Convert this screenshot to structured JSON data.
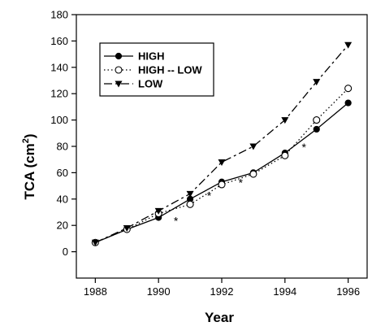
{
  "chart_data": {
    "type": "line",
    "title": "",
    "xlabel": "Year",
    "ylabel": "TCA (cm",
    "ylabel_sup": "2",
    "ylabel_close": ")",
    "xlim": [
      1987.4,
      1996.6
    ],
    "ylim": [
      -20,
      180
    ],
    "xticks": [
      1988,
      1990,
      1992,
      1994,
      1996
    ],
    "yticks": [
      0,
      20,
      40,
      60,
      80,
      100,
      120,
      140,
      160,
      180
    ],
    "grid": false,
    "legend_position": "top-left",
    "x": [
      1988,
      1989,
      1990,
      1991,
      1992,
      1993,
      1994,
      1995,
      1996
    ],
    "series": [
      {
        "name": "HIGH",
        "values": [
          7,
          17,
          26,
          40,
          53,
          60,
          75,
          93,
          113
        ],
        "marker": "filled-circle",
        "dash": "solid"
      },
      {
        "name": "HIGH -- LOW",
        "values": [
          7,
          17,
          29,
          36,
          51,
          59,
          73,
          100,
          124
        ],
        "marker": "open-circle",
        "dash": "dotted"
      },
      {
        "name": "LOW",
        "values": [
          7,
          18,
          31,
          44,
          68,
          80,
          100,
          129,
          157
        ],
        "marker": "filled-triangle-down",
        "dash": "dash-dot"
      }
    ],
    "annotations": [
      {
        "text": "*",
        "x": 1990.55,
        "y": 26
      },
      {
        "text": "*",
        "x": 1991.6,
        "y": 45
      },
      {
        "text": "*",
        "x": 1992.6,
        "y": 55
      },
      {
        "text": "*",
        "x": 1994.6,
        "y": 82
      }
    ]
  }
}
